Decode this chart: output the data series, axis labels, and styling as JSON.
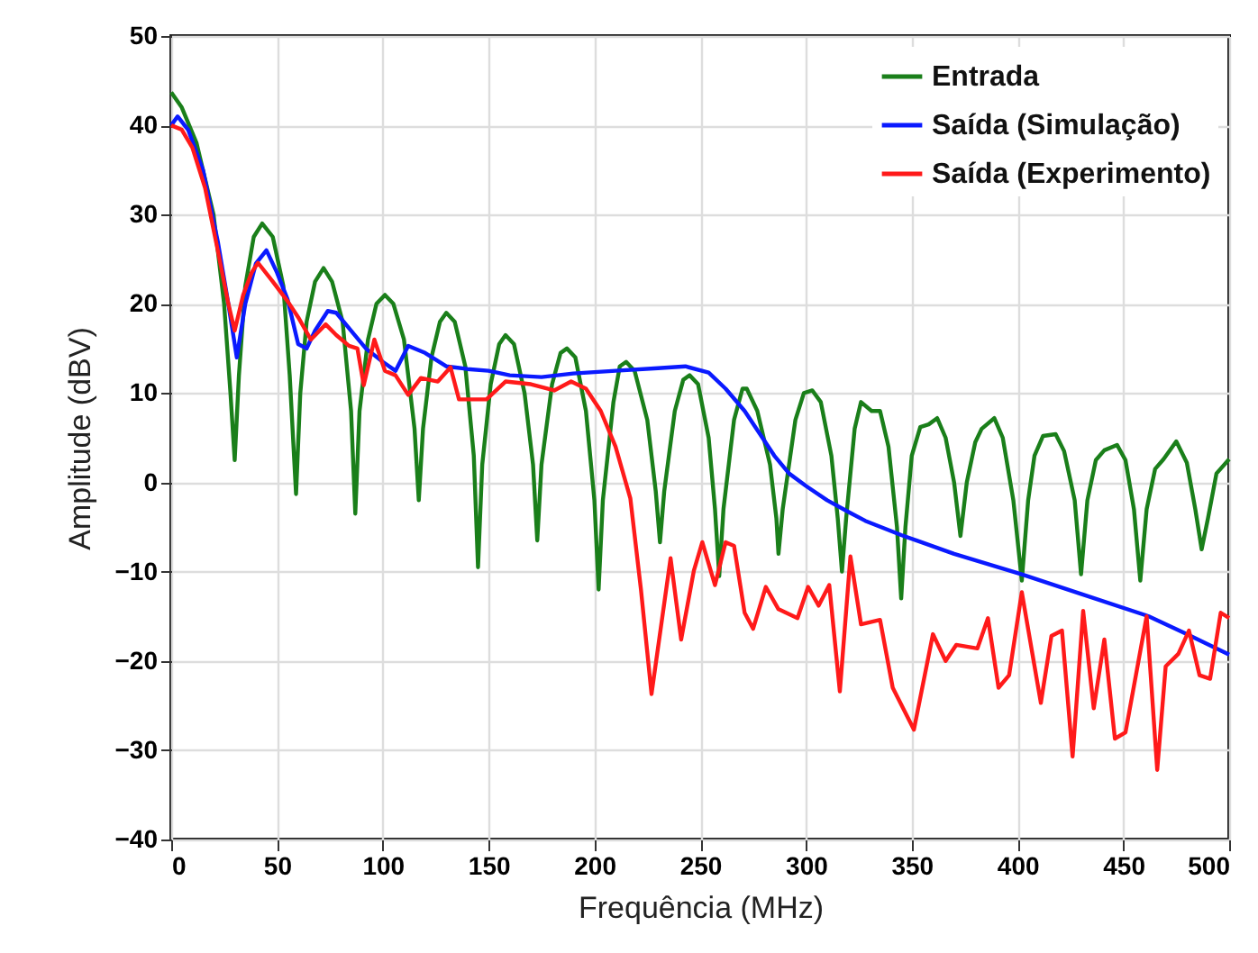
{
  "chart_data": {
    "type": "line",
    "xlabel": "Frequência (MHz)",
    "ylabel": "Amplitude (dBV)",
    "xlim": [
      0,
      500
    ],
    "xticks": [
      0,
      50,
      100,
      150,
      200,
      250,
      300,
      350,
      400,
      450,
      500
    ],
    "ylim": [
      -40,
      50
    ],
    "yticks": [
      -40,
      -30,
      -20,
      -10,
      0,
      10,
      20,
      30,
      40,
      50
    ],
    "grid": true,
    "legend": "top right",
    "marker": "none",
    "line_style": "solid",
    "series": [
      {
        "name": "Entrada",
        "color": "#1a7f1a",
        "x": [
          0,
          5,
          12,
          20,
          25,
          28,
          30,
          32,
          35,
          39,
          43,
          48,
          53,
          56,
          59,
          61,
          64,
          68,
          72,
          76,
          81,
          85,
          87,
          89,
          93,
          97,
          101,
          105,
          110,
          115,
          117,
          119,
          123,
          127,
          130,
          134,
          139,
          143,
          145,
          147,
          151,
          155,
          158,
          162,
          167,
          171,
          173,
          175,
          180,
          184,
          187,
          191,
          196,
          200,
          202,
          204,
          209,
          212,
          215,
          219,
          225,
          229,
          231,
          233,
          238,
          242,
          245,
          249,
          254,
          257,
          259,
          261,
          266,
          270,
          272,
          277,
          283,
          286,
          287,
          289,
          295,
          299,
          303,
          307,
          312,
          315,
          317,
          319,
          323,
          326,
          331,
          335,
          339,
          343,
          345,
          347,
          350,
          354,
          358,
          362,
          366,
          370,
          373,
          376,
          380,
          383,
          389,
          393,
          398,
          402,
          405,
          408,
          412,
          418,
          422,
          427,
          430,
          433,
          437,
          441,
          447,
          451,
          455,
          458,
          461,
          465,
          469,
          475,
          480,
          484,
          487,
          490,
          494,
          500
        ],
        "values": [
          43.7,
          42,
          38,
          30,
          20,
          10,
          2.5,
          12,
          22,
          27.5,
          29,
          27.5,
          22,
          12,
          -1.3,
          10,
          18,
          22.5,
          24,
          22.5,
          18,
          8,
          -3.5,
          8,
          16,
          20,
          21,
          20,
          16,
          6,
          -2,
          6,
          14,
          18,
          19,
          18,
          13,
          3,
          -9.5,
          2,
          11,
          15.5,
          16.5,
          15.5,
          10,
          2,
          -6.5,
          2,
          11,
          14.5,
          15,
          14,
          8,
          -2,
          -12,
          -2,
          9,
          13,
          13.5,
          12.5,
          7,
          -1,
          -6.7,
          -1,
          8,
          11.5,
          12,
          11,
          5,
          -3,
          -10.5,
          -3,
          7,
          10.5,
          10.5,
          8,
          2,
          -4,
          -8,
          -3,
          7,
          10,
          10.3,
          9,
          3,
          -4,
          -10,
          -4,
          6,
          9,
          8,
          8,
          4,
          -5,
          -13,
          -5,
          3,
          6.2,
          6.5,
          7.2,
          5,
          0,
          -6,
          0,
          4.5,
          6,
          7.2,
          5,
          -2,
          -11,
          -2,
          3,
          5.2,
          5.4,
          3.5,
          -2,
          -10.3,
          -2,
          2.5,
          3.6,
          4.2,
          2.5,
          -3,
          -11,
          -3,
          1.5,
          2.6,
          4.6,
          2.2,
          -3,
          -7.5,
          -4,
          1,
          2.6
        ]
      },
      {
        "name": "Saída (Simulação)",
        "color": "#0a1aff",
        "x": [
          0,
          3,
          8,
          15,
          22,
          27,
          31,
          35,
          40,
          45,
          50,
          55,
          60,
          64,
          68,
          74,
          78,
          85,
          92,
          100,
          106,
          112,
          120,
          130,
          140,
          150,
          160,
          175,
          190,
          210,
          230,
          243,
          254,
          262,
          271,
          278,
          285,
          292,
          300,
          310,
          320,
          328,
          345,
          370,
          402,
          430,
          462,
          480,
          500
        ],
        "values": [
          40,
          41,
          39.5,
          35,
          27,
          20,
          14,
          20,
          24.5,
          26,
          23.5,
          20.5,
          15.5,
          15,
          17,
          19.2,
          19,
          17,
          15,
          13.5,
          12.5,
          15.3,
          14.5,
          13,
          12.7,
          12.5,
          12,
          11.8,
          12.2,
          12.5,
          12.8,
          13,
          12.3,
          10.5,
          8,
          5.5,
          3,
          1,
          -0.4,
          -2,
          -3.3,
          -4.3,
          -5.9,
          -8,
          -10.3,
          -12.5,
          -15,
          -17,
          -19.3
        ]
      },
      {
        "name": "Saída (Experimento)",
        "color": "#ff1a1a",
        "x": [
          0,
          5,
          10,
          16,
          22,
          27,
          30,
          34,
          38,
          41,
          48,
          55,
          60,
          66,
          73,
          78,
          84,
          88,
          91,
          96,
          101,
          106,
          112,
          118,
          126,
          132,
          136,
          149,
          158,
          170,
          181,
          189,
          196,
          203,
          210,
          217,
          222,
          227,
          236,
          241,
          247,
          251,
          257,
          262,
          266,
          271,
          275,
          281,
          287,
          296,
          301,
          306,
          311,
          316,
          321,
          326,
          335,
          341,
          351,
          360,
          366,
          371,
          381,
          386,
          391,
          396,
          402,
          411,
          416,
          421,
          426,
          431,
          436,
          441,
          446,
          451,
          461,
          466,
          470,
          476,
          481,
          486,
          491,
          496,
          500
        ],
        "values": [
          40,
          39.5,
          37.5,
          33,
          26,
          20,
          17,
          21,
          23.5,
          24.6,
          22.5,
          20.3,
          18.5,
          16,
          17.7,
          16.5,
          15.3,
          15,
          10.9,
          16,
          12.5,
          12,
          9.8,
          11.7,
          11.3,
          12.9,
          9.3,
          9.3,
          11.3,
          11,
          10.3,
          11.3,
          10.5,
          8,
          4,
          -1.8,
          -12,
          -23.7,
          -8.5,
          -17.6,
          -9.9,
          -6.7,
          -11.5,
          -6.7,
          -7.1,
          -14.6,
          -16.4,
          -11.7,
          -14.2,
          -15.2,
          -11.7,
          -13.8,
          -11.5,
          -23.4,
          -8.3,
          -15.9,
          -15.4,
          -23,
          -27.7,
          -17,
          -20,
          -18.2,
          -18.6,
          -15.2,
          -23,
          -21.6,
          -12.3,
          -24.7,
          -17.2,
          -16.6,
          -30.7,
          -14.4,
          -25.3,
          -17.6,
          -28.7,
          -28,
          -15,
          -32.2,
          -20.6,
          -19.2,
          -16.6,
          -21.6,
          -22,
          -14.6,
          -15.2
        ]
      }
    ]
  }
}
